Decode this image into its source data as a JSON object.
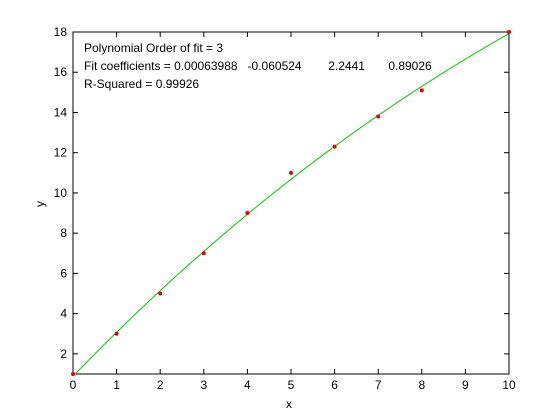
{
  "chart_data": {
    "type": "scatter",
    "xlabel": "x",
    "ylabel": "y",
    "xlim": [
      0,
      10
    ],
    "ylim": [
      1,
      18
    ],
    "xticks": [
      0,
      1,
      2,
      3,
      4,
      5,
      6,
      7,
      8,
      9,
      10
    ],
    "yticks": [
      2,
      4,
      6,
      8,
      10,
      12,
      14,
      16,
      18
    ],
    "grid": false,
    "annotations": [
      "Polynomial Order of fit = 3",
      "Fit coefficients = 0.00063988   -0.060524        2.2441       0.89026",
      "R-Squared = 0.99926"
    ],
    "series": [
      {
        "kind": "points",
        "color": "#e60000",
        "x": [
          0,
          1,
          2,
          3,
          4,
          5,
          6,
          7,
          8,
          10
        ],
        "y": [
          1,
          3,
          5,
          7,
          9,
          11,
          12.3,
          13.8,
          15.1,
          18
        ]
      },
      {
        "kind": "fit-curve",
        "color": "#00cc00",
        "coefficients": [
          0.00063988,
          -0.060524,
          2.2441,
          0.89026
        ]
      }
    ]
  }
}
